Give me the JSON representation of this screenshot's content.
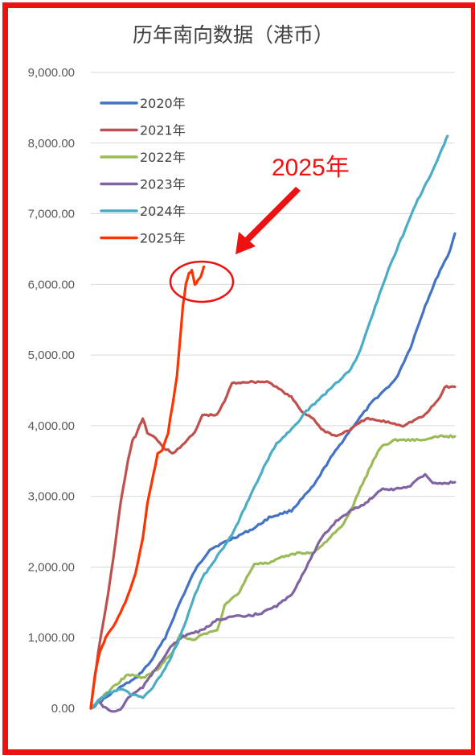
{
  "chart_data": {
    "type": "line",
    "title": "历年南向数据（港币）",
    "xlabel": "",
    "ylabel": "",
    "ylim": [
      0,
      9000
    ],
    "yticks": [
      "0.00",
      "1,000.00",
      "2,000.00",
      "3,000.00",
      "4,000.00",
      "5,000.00",
      "6,000.00",
      "7,000.00",
      "8,000.00",
      "9,000.00"
    ],
    "grid": true,
    "legend_position": "top-left",
    "x_points": 245,
    "series": [
      {
        "name": "2020年",
        "color": "#4472c4",
        "points": [
          [
            0,
            0
          ],
          [
            10,
            150
          ],
          [
            20,
            300
          ],
          [
            30,
            420
          ],
          [
            40,
            650
          ],
          [
            50,
            1000
          ],
          [
            60,
            1500
          ],
          [
            70,
            1950
          ],
          [
            80,
            2250
          ],
          [
            90,
            2350
          ],
          [
            100,
            2450
          ],
          [
            110,
            2550
          ],
          [
            120,
            2700
          ],
          [
            135,
            2800
          ],
          [
            150,
            3150
          ],
          [
            160,
            3500
          ],
          [
            175,
            3950
          ],
          [
            190,
            4350
          ],
          [
            205,
            4650
          ],
          [
            215,
            5100
          ],
          [
            225,
            5700
          ],
          [
            235,
            6200
          ],
          [
            240,
            6400
          ],
          [
            242,
            6500
          ],
          [
            245,
            6720
          ]
        ]
      },
      {
        "name": "2021年",
        "color": "#c0504d",
        "points": [
          [
            0,
            0
          ],
          [
            5,
            800
          ],
          [
            10,
            1400
          ],
          [
            15,
            2100
          ],
          [
            20,
            2900
          ],
          [
            25,
            3500
          ],
          [
            28,
            3800
          ],
          [
            30,
            3850
          ],
          [
            33,
            4000
          ],
          [
            35,
            4100
          ],
          [
            38,
            3900
          ],
          [
            42,
            3850
          ],
          [
            45,
            3800
          ],
          [
            48,
            3700
          ],
          [
            52,
            3650
          ],
          [
            55,
            3600
          ],
          [
            60,
            3700
          ],
          [
            65,
            3800
          ],
          [
            70,
            3900
          ],
          [
            75,
            4150
          ],
          [
            85,
            4150
          ],
          [
            90,
            4350
          ],
          [
            95,
            4600
          ],
          [
            105,
            4620
          ],
          [
            120,
            4620
          ],
          [
            128,
            4500
          ],
          [
            135,
            4400
          ],
          [
            142,
            4200
          ],
          [
            150,
            4100
          ],
          [
            155,
            3950
          ],
          [
            165,
            3850
          ],
          [
            175,
            3950
          ],
          [
            185,
            4100
          ],
          [
            200,
            4050
          ],
          [
            210,
            4000
          ],
          [
            225,
            4150
          ],
          [
            235,
            4400
          ],
          [
            238,
            4550
          ],
          [
            245,
            4550
          ]
        ]
      },
      {
        "name": "2022年",
        "color": "#9bbb59",
        "points": [
          [
            0,
            0
          ],
          [
            15,
            300
          ],
          [
            25,
            480
          ],
          [
            35,
            430
          ],
          [
            45,
            550
          ],
          [
            55,
            800
          ],
          [
            60,
            1050
          ],
          [
            65,
            980
          ],
          [
            70,
            980
          ],
          [
            75,
            1050
          ],
          [
            85,
            1100
          ],
          [
            90,
            1450
          ],
          [
            100,
            1650
          ],
          [
            105,
            1850
          ],
          [
            110,
            2050
          ],
          [
            120,
            2050
          ],
          [
            130,
            2150
          ],
          [
            140,
            2200
          ],
          [
            150,
            2200
          ],
          [
            160,
            2400
          ],
          [
            170,
            2600
          ],
          [
            175,
            2800
          ],
          [
            180,
            3050
          ],
          [
            190,
            3500
          ],
          [
            195,
            3700
          ],
          [
            205,
            3800
          ],
          [
            215,
            3800
          ],
          [
            225,
            3800
          ],
          [
            235,
            3850
          ],
          [
            245,
            3850
          ]
        ]
      },
      {
        "name": "2023年",
        "color": "#8064a2",
        "points": [
          [
            0,
            0
          ],
          [
            5,
            100
          ],
          [
            10,
            0
          ],
          [
            15,
            -50
          ],
          [
            20,
            -20
          ],
          [
            25,
            150
          ],
          [
            35,
            300
          ],
          [
            45,
            600
          ],
          [
            55,
            900
          ],
          [
            65,
            1050
          ],
          [
            75,
            1100
          ],
          [
            85,
            1250
          ],
          [
            95,
            1300
          ],
          [
            105,
            1300
          ],
          [
            115,
            1350
          ],
          [
            125,
            1450
          ],
          [
            135,
            1600
          ],
          [
            145,
            2000
          ],
          [
            155,
            2400
          ],
          [
            165,
            2650
          ],
          [
            175,
            2800
          ],
          [
            185,
            2900
          ],
          [
            195,
            3100
          ],
          [
            205,
            3100
          ],
          [
            215,
            3150
          ],
          [
            220,
            3250
          ],
          [
            225,
            3300
          ],
          [
            230,
            3200
          ],
          [
            235,
            3180
          ],
          [
            245,
            3200
          ]
        ]
      },
      {
        "name": "2024年",
        "color": "#4bacc6",
        "points": [
          [
            0,
            0
          ],
          [
            10,
            200
          ],
          [
            20,
            280
          ],
          [
            25,
            220
          ],
          [
            35,
            150
          ],
          [
            40,
            250
          ],
          [
            50,
            550
          ],
          [
            60,
            1000
          ],
          [
            70,
            1600
          ],
          [
            75,
            1850
          ],
          [
            85,
            2150
          ],
          [
            95,
            2450
          ],
          [
            105,
            2900
          ],
          [
            115,
            3350
          ],
          [
            125,
            3750
          ],
          [
            135,
            3950
          ],
          [
            145,
            4200
          ],
          [
            155,
            4400
          ],
          [
            165,
            4600
          ],
          [
            175,
            4800
          ],
          [
            180,
            5000
          ],
          [
            190,
            5600
          ],
          [
            200,
            6200
          ],
          [
            210,
            6700
          ],
          [
            220,
            7200
          ],
          [
            230,
            7600
          ],
          [
            238,
            8000
          ],
          [
            240,
            8100
          ]
        ]
      },
      {
        "name": "2025年",
        "color": "#ff3300",
        "points": [
          [
            0,
            0
          ],
          [
            3,
            500
          ],
          [
            6,
            800
          ],
          [
            10,
            1000
          ],
          [
            15,
            1150
          ],
          [
            20,
            1350
          ],
          [
            25,
            1600
          ],
          [
            30,
            1900
          ],
          [
            35,
            2400
          ],
          [
            38,
            2900
          ],
          [
            42,
            3300
          ],
          [
            45,
            3600
          ],
          [
            48,
            3650
          ],
          [
            52,
            3900
          ],
          [
            55,
            4300
          ],
          [
            58,
            4700
          ],
          [
            60,
            5200
          ],
          [
            62,
            5700
          ],
          [
            64,
            6000
          ],
          [
            66,
            6150
          ],
          [
            68,
            6200
          ],
          [
            70,
            6000
          ],
          [
            72,
            6050
          ],
          [
            74,
            6100
          ],
          [
            76,
            6250
          ]
        ]
      }
    ],
    "annotation": {
      "label": "2025年",
      "color": "#ee1111"
    }
  }
}
